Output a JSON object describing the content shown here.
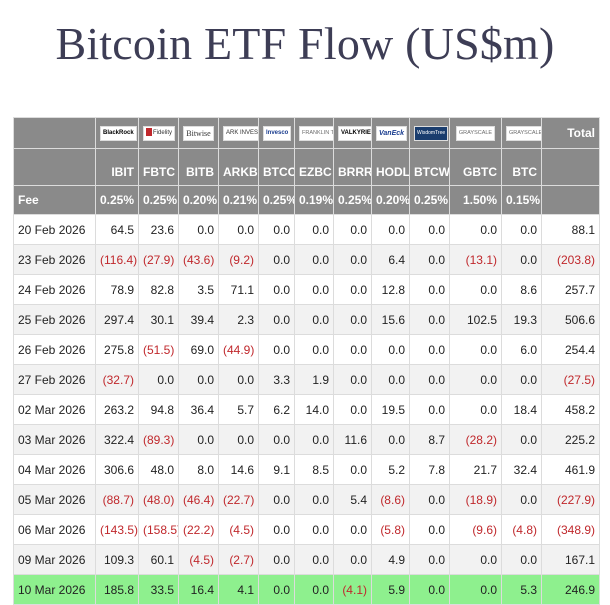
{
  "title": "Bitcoin ETF Flow (US$m)",
  "logos": [
    {
      "key": "blackrock",
      "text": "BlackRock"
    },
    {
      "key": "fidelity",
      "text": "Fidelity"
    },
    {
      "key": "bitwise",
      "text": "Bitwise"
    },
    {
      "key": "ark",
      "text": "ARK INVEST"
    },
    {
      "key": "invesco",
      "text": "Invesco"
    },
    {
      "key": "franklin",
      "text": "FRANKLIN TEMPLETON"
    },
    {
      "key": "valkyrie",
      "text": "VALKYRIE"
    },
    {
      "key": "vaneck",
      "text": "VanEck"
    },
    {
      "key": "wisdomtree",
      "text": "WisdomTree"
    },
    {
      "key": "grayscale1",
      "text": "GRAYSCALE"
    },
    {
      "key": "grayscale2",
      "text": "GRAYSCALE"
    }
  ],
  "total_header": "Total",
  "tickers": [
    "IBIT",
    "FBTC",
    "BITB",
    "ARKB",
    "BTCO",
    "EZBC",
    "BRRR",
    "HODL",
    "BTCW",
    "GBTC",
    "BTC"
  ],
  "fee_label": "Fee",
  "fees": [
    "0.25%",
    "0.25%",
    "0.20%",
    "0.21%",
    "0.25%",
    "0.19%",
    "0.25%",
    "0.20%",
    "0.25%",
    "1.50%",
    "0.15%"
  ],
  "rows": [
    {
      "date": "20 Feb 2026",
      "values": [
        "64.5",
        "23.6",
        "0.0",
        "0.0",
        "0.0",
        "0.0",
        "0.0",
        "0.0",
        "0.0",
        "0.0",
        "0.0",
        "88.1"
      ]
    },
    {
      "date": "23 Feb 2026",
      "values": [
        "(116.4)",
        "(27.9)",
        "(43.6)",
        "(9.2)",
        "0.0",
        "0.0",
        "0.0",
        "6.4",
        "0.0",
        "(13.1)",
        "0.0",
        "(203.8)"
      ]
    },
    {
      "date": "24 Feb 2026",
      "values": [
        "78.9",
        "82.8",
        "3.5",
        "71.1",
        "0.0",
        "0.0",
        "0.0",
        "12.8",
        "0.0",
        "0.0",
        "8.6",
        "257.7"
      ]
    },
    {
      "date": "25 Feb 2026",
      "values": [
        "297.4",
        "30.1",
        "39.4",
        "2.3",
        "0.0",
        "0.0",
        "0.0",
        "15.6",
        "0.0",
        "102.5",
        "19.3",
        "506.6"
      ]
    },
    {
      "date": "26 Feb 2026",
      "values": [
        "275.8",
        "(51.5)",
        "69.0",
        "(44.9)",
        "0.0",
        "0.0",
        "0.0",
        "0.0",
        "0.0",
        "0.0",
        "6.0",
        "254.4"
      ]
    },
    {
      "date": "27 Feb 2026",
      "values": [
        "(32.7)",
        "0.0",
        "0.0",
        "0.0",
        "3.3",
        "1.9",
        "0.0",
        "0.0",
        "0.0",
        "0.0",
        "0.0",
        "(27.5)"
      ]
    },
    {
      "date": "02 Mar 2026",
      "values": [
        "263.2",
        "94.8",
        "36.4",
        "5.7",
        "6.2",
        "14.0",
        "0.0",
        "19.5",
        "0.0",
        "0.0",
        "18.4",
        "458.2"
      ]
    },
    {
      "date": "03 Mar 2026",
      "values": [
        "322.4",
        "(89.3)",
        "0.0",
        "0.0",
        "0.0",
        "0.0",
        "11.6",
        "0.0",
        "8.7",
        "(28.2)",
        "0.0",
        "225.2"
      ]
    },
    {
      "date": "04 Mar 2026",
      "values": [
        "306.6",
        "48.0",
        "8.0",
        "14.6",
        "9.1",
        "8.5",
        "0.0",
        "5.2",
        "7.8",
        "21.7",
        "32.4",
        "461.9"
      ]
    },
    {
      "date": "05 Mar 2026",
      "values": [
        "(88.7)",
        "(48.0)",
        "(46.4)",
        "(22.7)",
        "0.0",
        "0.0",
        "5.4",
        "(8.6)",
        "0.0",
        "(18.9)",
        "0.0",
        "(227.9)"
      ]
    },
    {
      "date": "06 Mar 2026",
      "values": [
        "(143.5)",
        "(158.5)",
        "(22.2)",
        "(4.5)",
        "0.0",
        "0.0",
        "0.0",
        "(5.8)",
        "0.0",
        "(9.6)",
        "(4.8)",
        "(348.9)"
      ]
    },
    {
      "date": "09 Mar 2026",
      "values": [
        "109.3",
        "60.1",
        "(4.5)",
        "(2.7)",
        "0.0",
        "0.0",
        "0.0",
        "4.9",
        "0.0",
        "0.0",
        "0.0",
        "167.1"
      ]
    },
    {
      "date": "10 Mar 2026",
      "values": [
        "185.8",
        "33.5",
        "16.4",
        "4.1",
        "0.0",
        "0.0",
        "(4.1)",
        "5.9",
        "0.0",
        "0.0",
        "5.3",
        "246.9"
      ],
      "highlight": true
    }
  ],
  "colors": {
    "header_bg": "#8a8a8a",
    "negative": "#c0282c",
    "highlight": "#8ef08e",
    "title": "#3d3d55"
  }
}
